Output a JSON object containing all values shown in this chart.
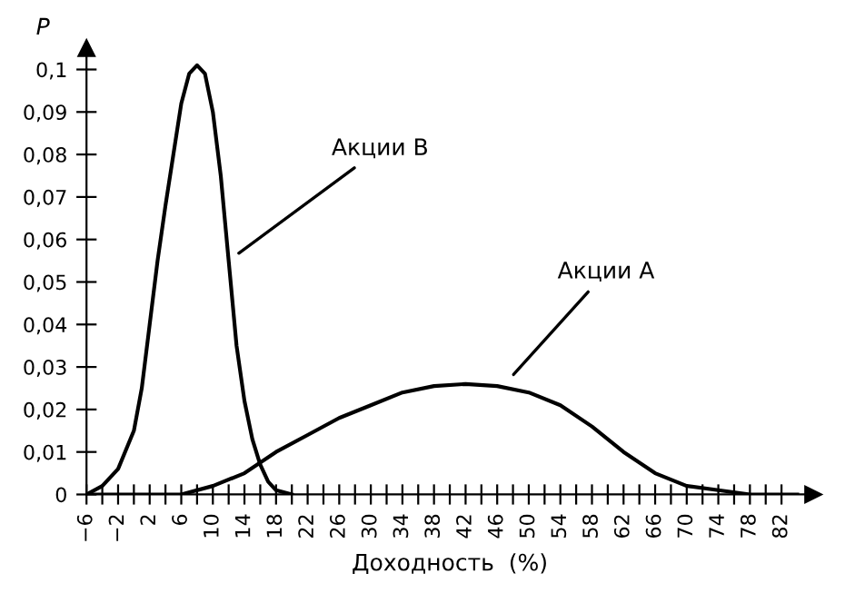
{
  "chart_data": {
    "type": "line",
    "xlabel": "Доходность  (%)",
    "ylabel": "P",
    "series": [
      {
        "name": "Акции B",
        "x": [
          -6,
          -4,
          -2,
          0,
          1,
          2,
          3,
          4,
          5,
          6,
          7,
          8,
          9,
          10,
          11,
          12,
          13,
          14,
          15,
          16,
          17,
          18,
          20
        ],
        "values": [
          0,
          0.002,
          0.006,
          0.015,
          0.025,
          0.04,
          0.055,
          0.068,
          0.08,
          0.092,
          0.099,
          0.101,
          0.099,
          0.09,
          0.075,
          0.055,
          0.035,
          0.022,
          0.013,
          0.007,
          0.003,
          0.001,
          0
        ],
        "color": "#000000"
      },
      {
        "name": "Акции A",
        "x": [
          -6,
          2,
          6,
          10,
          14,
          18,
          22,
          26,
          30,
          34,
          38,
          42,
          46,
          50,
          54,
          58,
          62,
          66,
          70,
          74,
          78,
          84
        ],
        "values": [
          0,
          0,
          0,
          0.002,
          0.005,
          0.01,
          0.014,
          0.018,
          0.021,
          0.024,
          0.0255,
          0.026,
          0.0255,
          0.024,
          0.021,
          0.016,
          0.01,
          0.005,
          0.002,
          0.001,
          0,
          0
        ],
        "color": "#000000"
      }
    ],
    "xlim": [
      -6,
      86
    ],
    "ylim": [
      0,
      0.105
    ],
    "xticks": [
      {
        "value": -6,
        "label": "−6"
      },
      {
        "value": -4,
        "label": null
      },
      {
        "value": -2,
        "label": "−2"
      },
      {
        "value": 0,
        "label": null
      },
      2,
      {
        "value": 4,
        "label": null
      },
      6,
      {
        "value": 8,
        "label": null
      },
      10,
      {
        "value": 12,
        "label": null
      },
      14,
      {
        "value": 16,
        "label": null
      },
      18,
      {
        "value": 20,
        "label": null
      },
      22,
      {
        "value": 24,
        "label": null
      },
      26,
      {
        "value": 28,
        "label": null
      },
      30,
      {
        "value": 32,
        "label": null
      },
      34,
      {
        "value": 36,
        "label": null
      },
      38,
      {
        "value": 40,
        "label": null
      },
      42,
      {
        "value": 44,
        "label": null
      },
      46,
      {
        "value": 48,
        "label": null
      },
      50,
      {
        "value": 52,
        "label": null
      },
      54,
      {
        "value": 56,
        "label": null
      },
      58,
      {
        "value": 60,
        "label": null
      },
      62,
      {
        "value": 64,
        "label": null
      },
      66,
      {
        "value": 68,
        "label": null
      },
      70,
      {
        "value": 72,
        "label": null
      },
      74,
      {
        "value": 76,
        "label": null
      },
      78,
      {
        "value": 80,
        "label": null
      },
      82
    ],
    "yticks": [
      {
        "value": 0,
        "label": "0"
      },
      {
        "value": 0.01,
        "label": "0,01"
      },
      {
        "value": 0.02,
        "label": "0,02"
      },
      {
        "value": 0.03,
        "label": "0,03"
      },
      {
        "value": 0.04,
        "label": "0,04"
      },
      {
        "value": 0.05,
        "label": "0,05"
      },
      {
        "value": 0.06,
        "label": "0,06"
      },
      {
        "value": 0.07,
        "label": "0,07"
      },
      {
        "value": 0.08,
        "label": "0,08"
      },
      {
        "value": 0.09,
        "label": "0,09"
      },
      {
        "value": 0.1,
        "label": "0,1"
      }
    ],
    "grid": false,
    "line_style": "solid",
    "marker": "none"
  }
}
